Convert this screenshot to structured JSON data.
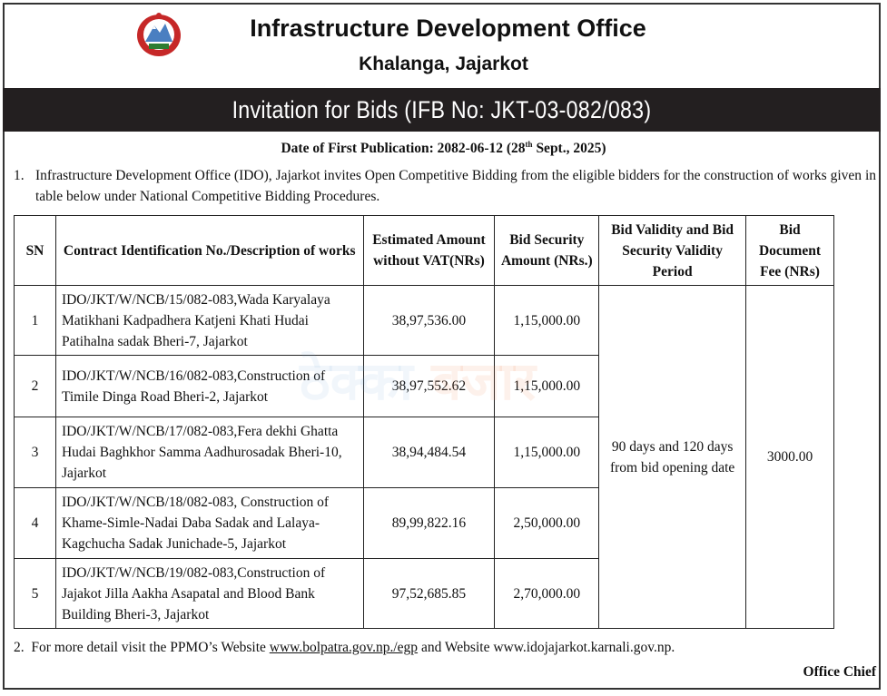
{
  "header": {
    "title": "Infrastructure Development Office",
    "subtitle": "Khalanga, Jajarkot",
    "band_title": "Invitation for Bids (IFB No: JKT-03-082/083)"
  },
  "date_line": {
    "prefix": "Date of First Publication: 2082-06-12 (28",
    "sup": "th",
    "suffix": " Sept., 2025)"
  },
  "para1": {
    "num": "1.",
    "text": "Infrastructure Development Office (IDO), Jajarkot invites Open Competitive Bidding from the eligible bidders for the construction of works given in table below under National Competitive Bidding Procedures."
  },
  "table": {
    "headers": [
      "SN",
      "Contract Identification No./Description of works",
      "Estimated Amount without VAT(NRs)",
      "Bid Security Amount (NRs.)",
      "Bid Validity and Bid Security Validity Period",
      "Bid Document Fee (NRs)"
    ],
    "rows": [
      {
        "sn": "1",
        "desc": "IDO/JKT/W/NCB/15/082-083,Wada Karyalaya Matikhani Kadpadhera Katjeni Khati Hudai Patihalna sadak Bheri-7, Jajarkot",
        "estimate": "38,97,536.00",
        "security": "1,15,000.00"
      },
      {
        "sn": "2",
        "desc": "IDO/JKT/W/NCB/16/082-083,Construction of Timile Dinga Road Bheri-2, Jajarkot",
        "estimate": "38,97,552.62",
        "security": "1,15,000.00"
      },
      {
        "sn": "3",
        "desc": "IDO/JKT/W/NCB/17/082-083,Fera dekhi Ghatta Hudai Baghkhor Samma Aadhurosadak Bheri-10, Jajarkot",
        "estimate": "38,94,484.54",
        "security": "1,15,000.00"
      },
      {
        "sn": "4",
        "desc": "IDO/JKT/W/NCB/18/082-083, Construction of Khame-Simle-Nadai Daba Sadak and Lalaya-Kagchucha Sadak Junichade-5, Jajarkot",
        "estimate": "89,99,822.16",
        "security": "2,50,000.00"
      },
      {
        "sn": "5",
        "desc": "IDO/JKT/W/NCB/19/082-083,Construction of Jajakot Jilla Aakha Asapatal and Blood Bank Building Bheri-3, Jajarkot",
        "estimate": "97,52,685.85",
        "security": "2,70,000.00"
      }
    ],
    "validity": "90 days and 120 days from bid opening date",
    "fee": "3000.00"
  },
  "para2": {
    "num": "2.",
    "before": "For more detail visit the PPMO’s Website ",
    "link": "www.bolpatra.gov.np./egp",
    "after": " and Website www.idojajarkot.karnali.gov.np."
  },
  "signature": "Office Chief",
  "watermark": {
    "part1": "ठेक्का",
    "part2": "बजार"
  }
}
